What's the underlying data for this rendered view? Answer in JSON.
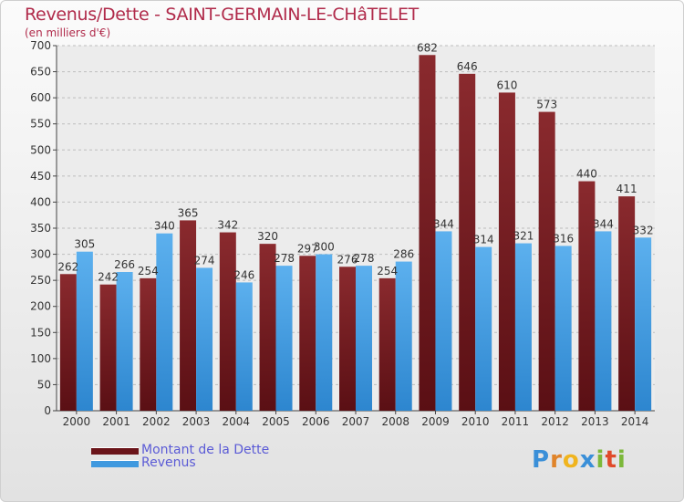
{
  "chart_data": {
    "type": "bar",
    "title": "Revenus/Dette - SAINT-GERMAIN-LE-CHâTELET",
    "subtitle": "(en milliers d'€)",
    "categories": [
      "2000",
      "2001",
      "2002",
      "2003",
      "2004",
      "2005",
      "2006",
      "2007",
      "2008",
      "2009",
      "2010",
      "2011",
      "2012",
      "2013",
      "2014"
    ],
    "series": [
      {
        "name": "Montant de la Dette",
        "color": "#7a1e23",
        "values": [
          262,
          242,
          254,
          365,
          342,
          320,
          297,
          276,
          254,
          682,
          646,
          610,
          573,
          440,
          411
        ]
      },
      {
        "name": "Revenus",
        "color": "#4aa3e6",
        "values": [
          305,
          266,
          340,
          274,
          246,
          278,
          300,
          278,
          286,
          344,
          314,
          321,
          316,
          344,
          332
        ]
      }
    ],
    "ylim": [
      0,
      700
    ],
    "yticks": [
      0,
      50,
      100,
      150,
      200,
      250,
      300,
      350,
      400,
      450,
      500,
      550,
      600,
      650,
      700
    ],
    "grid": true,
    "legend_position": "bottom-left"
  },
  "logo": {
    "letters": [
      "P",
      "r",
      "o",
      "x",
      "i",
      "t",
      "i"
    ],
    "colors": [
      "#3a8fd8",
      "#e0842a",
      "#f0b41e",
      "#3a8fd8",
      "#7cb83a",
      "#e04a2a",
      "#7cb83a"
    ]
  }
}
